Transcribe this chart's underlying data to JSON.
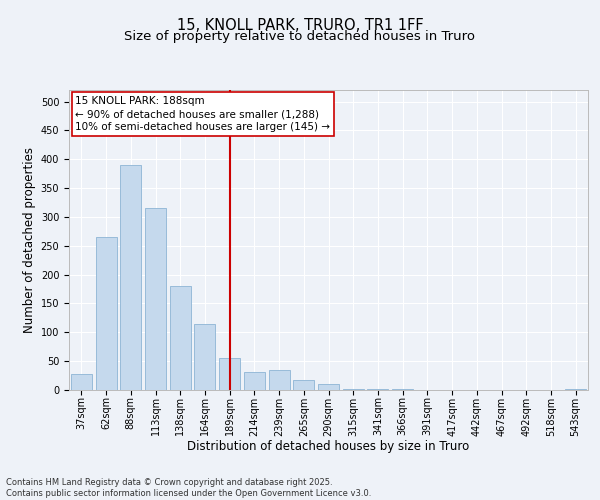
{
  "title_line1": "15, KNOLL PARK, TRURO, TR1 1FF",
  "title_line2": "Size of property relative to detached houses in Truro",
  "xlabel": "Distribution of detached houses by size in Truro",
  "ylabel": "Number of detached properties",
  "categories": [
    "37sqm",
    "62sqm",
    "88sqm",
    "113sqm",
    "138sqm",
    "164sqm",
    "189sqm",
    "214sqm",
    "239sqm",
    "265sqm",
    "290sqm",
    "315sqm",
    "341sqm",
    "366sqm",
    "391sqm",
    "417sqm",
    "442sqm",
    "467sqm",
    "492sqm",
    "518sqm",
    "543sqm"
  ],
  "values": [
    28,
    265,
    390,
    315,
    180,
    115,
    55,
    32,
    35,
    18,
    10,
    2,
    1,
    1,
    0,
    0,
    0,
    0,
    0,
    0,
    1
  ],
  "bar_color": "#c5d9ed",
  "bar_edge_color": "#8db4d5",
  "vline_x_index": 6,
  "vline_color": "#cc0000",
  "annotation_text": "15 KNOLL PARK: 188sqm\n← 90% of detached houses are smaller (1,288)\n10% of semi-detached houses are larger (145) →",
  "annotation_box_color": "#ffffff",
  "annotation_box_edge": "#cc0000",
  "ylim": [
    0,
    520
  ],
  "yticks": [
    0,
    50,
    100,
    150,
    200,
    250,
    300,
    350,
    400,
    450,
    500
  ],
  "background_color": "#eef2f8",
  "grid_color": "#ffffff",
  "footer_text": "Contains HM Land Registry data © Crown copyright and database right 2025.\nContains public sector information licensed under the Open Government Licence v3.0.",
  "title_fontsize": 10.5,
  "subtitle_fontsize": 9.5,
  "axis_label_fontsize": 8.5,
  "tick_fontsize": 7,
  "annotation_fontsize": 7.5,
  "footer_fontsize": 6
}
